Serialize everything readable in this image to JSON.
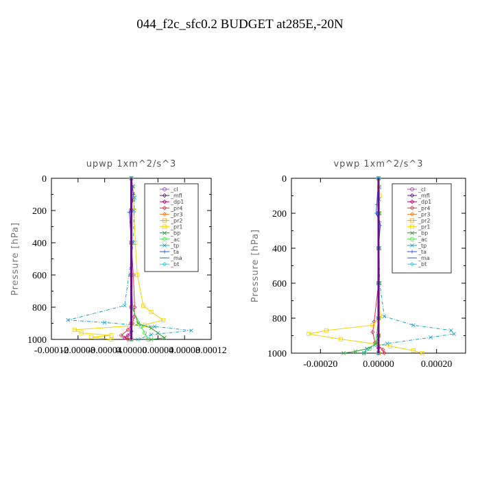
{
  "page": {
    "title": "044_f2c_sfc0.2  BUDGET at285E,-20N"
  },
  "chart_data": [
    {
      "type": "line",
      "title": "upwp   1xm^2/s^3",
      "ylabel": "Pressure [hPa]",
      "xlabel": "",
      "xlim": [
        -0.00012,
        0.00012
      ],
      "ylim": [
        1000,
        0
      ],
      "yticks": [
        0,
        200,
        400,
        600,
        800,
        1000
      ],
      "xticks": [
        -0.00012,
        -8e-05,
        -4e-05,
        0.0,
        4e-05,
        8e-05,
        0.00012
      ],
      "xtick_labels": [
        "-0.00012",
        "-0.00008",
        "-0.00004",
        "0.00000",
        "0.00004",
        "0.00008",
        "0.00012"
      ],
      "legend_position": "top-right",
      "series": [
        {
          "name": "_cl",
          "color": "#9b4fc0",
          "x": [
            0,
            0,
            0,
            0,
            0,
            0,
            0
          ],
          "y": [
            0,
            200,
            400,
            600,
            800,
            900,
            1000
          ]
        },
        {
          "name": "_mfl",
          "color": "#6a0f8e",
          "x": [
            0,
            0,
            0,
            0,
            0,
            0,
            0
          ],
          "y": [
            0,
            200,
            400,
            600,
            800,
            900,
            1000
          ]
        },
        {
          "name": "_dp1",
          "color": "#b00068",
          "x": [
            0,
            0,
            0,
            0,
            0,
            0,
            0,
            -5e-06,
            -1e-05,
            0
          ],
          "y": [
            0,
            200,
            400,
            600,
            800,
            900,
            950,
            975,
            990,
            1000
          ]
        },
        {
          "name": "_pr4",
          "color": "#e0304a",
          "x": [
            0,
            0,
            0,
            3e-06,
            5e-06,
            4e-06,
            2e-06,
            -5e-06,
            -1.5e-05,
            -5e-06
          ],
          "y": [
            0,
            200,
            400,
            600,
            800,
            860,
            900,
            940,
            975,
            1000
          ]
        },
        {
          "name": "_pr3",
          "color": "#f07a28",
          "x": [
            0,
            0,
            0,
            0,
            0,
            0,
            0
          ],
          "y": [
            0,
            200,
            400,
            600,
            800,
            900,
            1000
          ]
        },
        {
          "name": "_pr2",
          "color": "#f5a800",
          "x": [
            0,
            0,
            0,
            0,
            0,
            0,
            0
          ],
          "y": [
            0,
            200,
            400,
            600,
            800,
            900,
            1000
          ]
        },
        {
          "name": "_pr1",
          "color": "#f2d200",
          "x": [
            0,
            2e-06,
            3e-06,
            4e-06,
            6e-06,
            9e-06,
            1.8e-05,
            3e-05,
            4.8e-05,
            2e-05,
            -8.5e-05,
            -7.5e-05,
            -3e-05,
            -6e-05,
            -3e-05
          ],
          "y": [
            0,
            50,
            100,
            200,
            400,
            600,
            790,
            830,
            880,
            910,
            940,
            960,
            975,
            985,
            1000
          ]
        },
        {
          "name": "_bp",
          "color": "#2e9e2e",
          "x": [
            0,
            0,
            0,
            0,
            2e-06,
            1e-05,
            3e-05,
            4e-05,
            5e-05,
            3e-05
          ],
          "y": [
            0,
            200,
            400,
            600,
            800,
            900,
            930,
            960,
            990,
            1000
          ]
        },
        {
          "name": "_ac",
          "color": "#4fd84f",
          "x": [
            0,
            0,
            0,
            0,
            0,
            1.5e-05,
            2e-05,
            2.5e-05
          ],
          "y": [
            0,
            200,
            400,
            600,
            800,
            920,
            960,
            1000
          ]
        },
        {
          "name": "_tp",
          "color": "#1aa0c8",
          "x": [
            0,
            3e-06,
            5e-06,
            4e-06,
            3e-06,
            -1e-05,
            -9.5e-05,
            -4e-05,
            3.5e-05,
            9e-05,
            3e-05,
            1e-05
          ],
          "y": [
            0,
            50,
            120,
            200,
            400,
            790,
            880,
            895,
            920,
            945,
            970,
            1000
          ]
        },
        {
          "name": "_ta",
          "color": "#2a4fd8",
          "x": [
            0,
            3e-06,
            2e-06,
            -3e-06,
            0,
            0
          ],
          "y": [
            0,
            100,
            140,
            210,
            400,
            1000
          ]
        },
        {
          "name": "_ma",
          "color": "#3a5ca8",
          "x": [
            0,
            0,
            0,
            0,
            0,
            0,
            0
          ],
          "y": [
            0,
            200,
            400,
            600,
            800,
            900,
            1000
          ]
        },
        {
          "name": "_bt",
          "color": "#17d4e0",
          "x": [
            0,
            0,
            0,
            0,
            0,
            0,
            0
          ],
          "y": [
            0,
            200,
            400,
            600,
            800,
            900,
            1000
          ]
        }
      ]
    },
    {
      "type": "line",
      "title": "vpwp   1xm^2/s^3",
      "ylabel": "Pressure [hPa]",
      "xlabel": "",
      "xlim": [
        -0.0003,
        0.0003
      ],
      "ylim": [
        1000,
        0
      ],
      "yticks": [
        0,
        200,
        400,
        600,
        800,
        1000
      ],
      "xticks": [
        -0.0002,
        0.0,
        0.0002
      ],
      "xtick_labels": [
        "-0.00020",
        "0.00000",
        "0.00020"
      ],
      "legend_position": "top-right",
      "series": [
        {
          "name": "_cl",
          "color": "#9b4fc0",
          "x": [
            0,
            0,
            0,
            0,
            0,
            0,
            0
          ],
          "y": [
            0,
            200,
            400,
            600,
            800,
            900,
            1000
          ]
        },
        {
          "name": "_mfl",
          "color": "#6a0f8e",
          "x": [
            0,
            0,
            0,
            0,
            0,
            0,
            0
          ],
          "y": [
            0,
            200,
            400,
            600,
            800,
            900,
            1000
          ]
        },
        {
          "name": "_dp1",
          "color": "#b00068",
          "x": [
            0,
            0,
            0,
            0,
            0,
            0,
            0,
            0
          ],
          "y": [
            0,
            200,
            400,
            600,
            800,
            900,
            970,
            1000
          ]
        },
        {
          "name": "_pr4",
          "color": "#e0304a",
          "x": [
            0,
            0,
            0,
            0,
            -1.5e-05,
            -2e-05,
            -1.2e-05,
            1.5e-05,
            2e-05
          ],
          "y": [
            0,
            200,
            400,
            600,
            820,
            880,
            940,
            980,
            1000
          ]
        },
        {
          "name": "_pr3",
          "color": "#f07a28",
          "x": [
            0,
            0,
            0,
            0,
            0,
            0,
            0
          ],
          "y": [
            0,
            200,
            400,
            600,
            800,
            900,
            1000
          ]
        },
        {
          "name": "_pr2",
          "color": "#f5a800",
          "x": [
            0,
            0,
            0,
            0,
            0,
            0,
            0
          ],
          "y": [
            0,
            200,
            400,
            600,
            800,
            900,
            1000
          ]
        },
        {
          "name": "_pr1",
          "color": "#f2d200",
          "x": [
            0,
            2e-06,
            4e-06,
            3e-06,
            2e-06,
            3e-06,
            5e-06,
            -2e-05,
            -0.00018,
            -0.00024,
            -0.00013,
            4e-05,
            0.00012,
            0.00015
          ],
          "y": [
            0,
            50,
            100,
            200,
            400,
            600,
            790,
            840,
            870,
            890,
            920,
            960,
            985,
            1000
          ]
        },
        {
          "name": "_bp",
          "color": "#2e9e2e",
          "x": [
            0,
            0,
            0,
            0,
            0,
            0,
            -1e-05,
            -4e-05,
            -8e-05,
            -0.00012
          ],
          "y": [
            0,
            200,
            400,
            600,
            800,
            900,
            950,
            975,
            990,
            1000
          ]
        },
        {
          "name": "_ac",
          "color": "#4fd84f",
          "x": [
            0,
            0,
            0,
            0,
            0,
            -1e-05,
            -3e-05,
            -5e-05
          ],
          "y": [
            0,
            200,
            400,
            600,
            800,
            940,
            975,
            1000
          ]
        },
        {
          "name": "_tp",
          "color": "#1aa0c8",
          "x": [
            0,
            3e-06,
            2e-06,
            3e-06,
            2e-06,
            4e-06,
            2e-05,
            0.00012,
            0.00025,
            0.00026,
            0.00018,
            3e-05,
            -4e-05,
            -5e-05
          ],
          "y": [
            0,
            50,
            120,
            200,
            400,
            600,
            790,
            840,
            870,
            890,
            910,
            945,
            975,
            1000
          ]
        },
        {
          "name": "_ta",
          "color": "#2a4fd8",
          "x": [
            0,
            -6e-06,
            -8e-06,
            4e-06,
            6e-06,
            0,
            0
          ],
          "y": [
            0,
            150,
            200,
            250,
            270,
            400,
            1000
          ]
        },
        {
          "name": "_ma",
          "color": "#3a5ca8",
          "x": [
            0,
            0,
            0,
            0,
            0,
            0,
            0
          ],
          "y": [
            0,
            200,
            400,
            600,
            800,
            900,
            1000
          ]
        },
        {
          "name": "_bt",
          "color": "#17d4e0",
          "x": [
            0,
            0,
            0,
            0,
            0,
            0,
            0
          ],
          "y": [
            0,
            200,
            400,
            600,
            800,
            900,
            1000
          ]
        }
      ]
    }
  ]
}
